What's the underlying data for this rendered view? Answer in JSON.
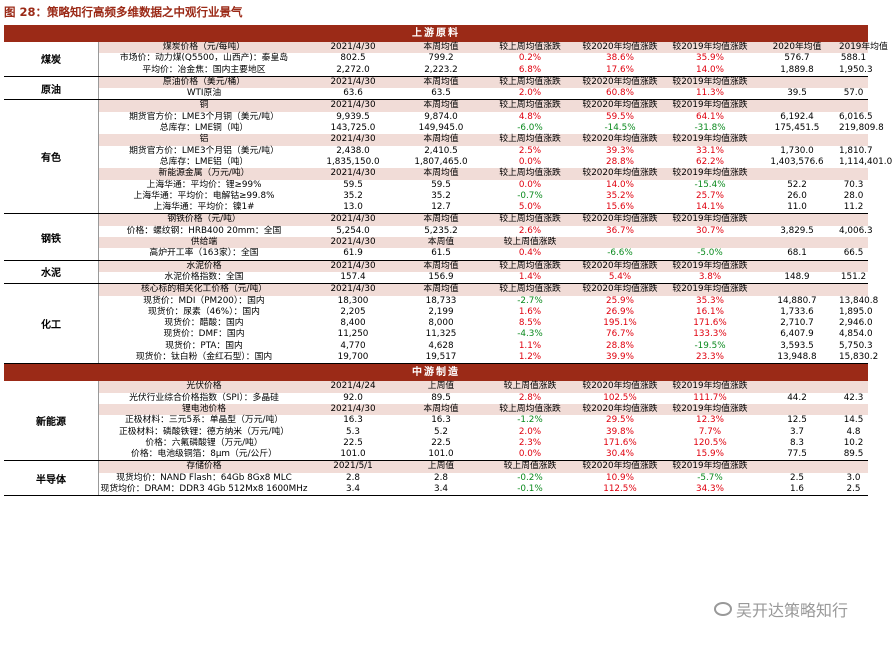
{
  "title": "图 28：策略知行高频多维数据之中观行业景气",
  "watermark": "吴开达策略知行",
  "sections": [
    {
      "title": "上游原料",
      "groups": [
        {
          "label": "煤炭",
          "rows": [
            {
              "h": true,
              "cells": [
                "煤炭价格（元/每吨）",
                "2021/4/30",
                "本周均值",
                "较上周均值涨跌",
                "较2020年均值涨跌",
                "较2019年均值涨跌",
                "2020年均值",
                "2019年均值"
              ]
            },
            {
              "cells": [
                "市场价：动力煤(Q5500，山西产)：秦皇岛",
                "802.5",
                "799.2",
                "0.2%",
                "38.6%",
                "35.9%",
                "576.7",
                "588.1"
              ]
            },
            {
              "cells": [
                "平均价：冶金焦：国内主要地区",
                "2,272.0",
                "2,223.2",
                "6.8%",
                "17.6%",
                "14.0%",
                "1,889.8",
                "1,950.3"
              ]
            }
          ]
        },
        {
          "label": "原油",
          "rows": [
            {
              "h": true,
              "cells": [
                "原油价格（美元/桶）",
                "2021/4/30",
                "本周均值",
                "较上周均值涨跌",
                "较2020年均值涨跌",
                "较2019年均值涨跌",
                "",
                ""
              ]
            },
            {
              "cells": [
                "WTI原油",
                "63.6",
                "63.5",
                "2.0%",
                "60.8%",
                "11.3%",
                "39.5",
                "57.0"
              ]
            }
          ]
        },
        {
          "label": "有色",
          "rows": [
            {
              "h": true,
              "cells": [
                "铜",
                "2021/4/30",
                "本周均值",
                "较上周均值涨跌",
                "较2020年均值涨跌",
                "较2019年均值涨跌",
                "",
                ""
              ]
            },
            {
              "cells": [
                "期货官方价：LME3个月铜（美元/吨）",
                "9,939.5",
                "9,874.0",
                "4.8%",
                "59.5%",
                "64.1%",
                "6,192.4",
                "6,016.5"
              ]
            },
            {
              "cells": [
                "总库存：LME铜（吨）",
                "143,725.0",
                "149,945.0",
                "-6.0%",
                "-14.5%",
                "-31.8%",
                "175,451.5",
                "219,809.8"
              ]
            },
            {
              "h": true,
              "cells": [
                "铝",
                "2021/4/30",
                "本周均值",
                "较上周均值涨跌",
                "较2020年均值涨跌",
                "较2019年均值涨跌",
                "",
                ""
              ]
            },
            {
              "cells": [
                "期货官方价：LME3个月铝（美元/吨）",
                "2,438.0",
                "2,410.5",
                "2.5%",
                "39.3%",
                "33.1%",
                "1,730.0",
                "1,810.7"
              ]
            },
            {
              "cells": [
                "总库存：LME铝（吨）",
                "1,835,150.0",
                "1,807,465.0",
                "0.0%",
                "28.8%",
                "62.2%",
                "1,403,576.6",
                "1,114,401.0"
              ]
            },
            {
              "h": true,
              "cells": [
                "新能源金属（万元/吨）",
                "2021/4/30",
                "本周均值",
                "较上周均值涨跌",
                "较2020年均值涨跌",
                "较2019年均值涨跌",
                "",
                ""
              ]
            },
            {
              "cells": [
                "上海华通：平均价：锂≥99%",
                "59.5",
                "59.5",
                "0.0%",
                "14.0%",
                "-15.4%",
                "52.2",
                "70.3"
              ]
            },
            {
              "cells": [
                "上海华通：平均价：电解钴≥99.8%",
                "35.2",
                "35.2",
                "-0.7%",
                "35.2%",
                "25.7%",
                "26.0",
                "28.0"
              ]
            },
            {
              "cells": [
                "上海华通：平均价：镍1#",
                "13.0",
                "12.7",
                "5.0%",
                "15.6%",
                "14.1%",
                "11.0",
                "11.2"
              ]
            }
          ]
        },
        {
          "label": "钢铁",
          "rows": [
            {
              "h": true,
              "cells": [
                "钢铁价格（元/吨）",
                "2021/4/30",
                "本周均值",
                "较上周均值涨跌",
                "较2020年均值涨跌",
                "较2019年均值涨跌",
                "",
                ""
              ]
            },
            {
              "cells": [
                "价格：螺纹钢：HRB400 20mm：全国",
                "5,254.0",
                "5,235.2",
                "2.6%",
                "36.7%",
                "30.7%",
                "3,829.5",
                "4,006.3"
              ]
            },
            {
              "h": true,
              "cells": [
                "供给端",
                "2021/4/30",
                "本周值",
                "较上周值涨跌",
                "",
                "",
                "",
                ""
              ]
            },
            {
              "cells": [
                "高炉开工率（163家）：全国",
                "61.9",
                "61.5",
                "0.4%",
                "-6.6%",
                "-5.0%",
                "68.1",
                "66.5"
              ]
            }
          ]
        },
        {
          "label": "水泥",
          "rows": [
            {
              "h": true,
              "cells": [
                "水泥价格",
                "2021/4/30",
                "本周均值",
                "较上周均值涨跌",
                "较2020年均值涨跌",
                "较2019年均值涨跌",
                "",
                ""
              ]
            },
            {
              "cells": [
                "水泥价格指数：全国",
                "157.4",
                "156.9",
                "1.4%",
                "5.4%",
                "3.8%",
                "148.9",
                "151.2"
              ]
            }
          ]
        },
        {
          "label": "化工",
          "rows": [
            {
              "h": true,
              "cells": [
                "核心标的相关化工价格（元/吨）",
                "2021/4/30",
                "本周均值",
                "较上周均值涨跌",
                "较2020年均值涨跌",
                "较2019年均值涨跌",
                "",
                ""
              ]
            },
            {
              "cells": [
                "现货价：MDI（PM200）：国内",
                "18,300",
                "18,733",
                "-2.7%",
                "25.9%",
                "35.3%",
                "14,880.7",
                "13,840.8"
              ]
            },
            {
              "cells": [
                "现货价：尿素（46%）：国内",
                "2,205",
                "2,199",
                "1.6%",
                "26.9%",
                "16.1%",
                "1,733.6",
                "1,895.0"
              ]
            },
            {
              "cells": [
                "现货价：醋酸：国内",
                "8,400",
                "8,000",
                "8.5%",
                "195.1%",
                "171.6%",
                "2,710.7",
                "2,946.0"
              ]
            },
            {
              "cells": [
                "现货价：DMF：国内",
                "11,250",
                "11,325",
                "-4.3%",
                "76.7%",
                "133.3%",
                "6,407.9",
                "4,854.0"
              ]
            },
            {
              "cells": [
                "现货价：PTA：国内",
                "4,770",
                "4,628",
                "1.1%",
                "28.8%",
                "-19.5%",
                "3,593.5",
                "5,750.3"
              ]
            },
            {
              "cells": [
                "现货价：钛白粉（金红石型）：国内",
                "19,700",
                "19,517",
                "1.2%",
                "39.9%",
                "23.3%",
                "13,948.8",
                "15,830.2"
              ]
            }
          ]
        }
      ]
    },
    {
      "title": "中游制造",
      "groups": [
        {
          "label": "新能源",
          "rows": [
            {
              "h": true,
              "cells": [
                "光伏价格",
                "2021/4/24",
                "上周值",
                "较上周值涨跌",
                "较2020年均值涨跌",
                "较2019年均值涨跌",
                "",
                ""
              ]
            },
            {
              "cells": [
                "光伏行业综合价格指数（SPI）：多晶硅",
                "92.0",
                "89.5",
                "2.8%",
                "102.5%",
                "111.7%",
                "44.2",
                "42.3"
              ]
            },
            {
              "h": true,
              "cells": [
                "锂电池价格",
                "2021/4/30",
                "本周均值",
                "较上周均值涨跌",
                "较2020年均值涨跌",
                "较2019年均值涨跌",
                "",
                ""
              ]
            },
            {
              "cells": [
                "正极材料：三元5系：单晶型（万元/吨）",
                "16.3",
                "16.3",
                "-1.2%",
                "29.5%",
                "12.3%",
                "12.5",
                "14.5"
              ]
            },
            {
              "cells": [
                "正极材料：磷酸铁锂：德方纳米（万元/吨）",
                "5.3",
                "5.2",
                "2.0%",
                "39.8%",
                "7.7%",
                "3.7",
                "4.8"
              ]
            },
            {
              "cells": [
                "价格：六氟磷酸锂（万元/吨）",
                "22.5",
                "22.5",
                "2.3%",
                "171.6%",
                "120.5%",
                "8.3",
                "10.2"
              ]
            },
            {
              "cells": [
                "价格：电池级铜箔：8μm（元/公斤）",
                "101.0",
                "101.0",
                "0.0%",
                "30.4%",
                "15.9%",
                "77.5",
                "89.5"
              ]
            }
          ]
        },
        {
          "label": "半导体",
          "rows": [
            {
              "h": true,
              "cells": [
                "存储价格",
                "2021/5/1",
                "上周值",
                "较上周值涨跌",
                "较2020年均值涨跌",
                "较2019年均值涨跌",
                "",
                ""
              ]
            },
            {
              "cells": [
                "现货均价：NAND Flash：64Gb 8Gx8 MLC",
                "2.8",
                "2.8",
                "-0.2%",
                "10.9%",
                "-5.7%",
                "2.5",
                "3.0"
              ]
            },
            {
              "cells": [
                "现货均价：DRAM：DDR3 4Gb 512Mx8 1600MHz",
                "3.4",
                "3.4",
                "-0.1%",
                "112.5%",
                "34.3%",
                "1.6",
                "2.5"
              ]
            }
          ]
        }
      ]
    }
  ]
}
